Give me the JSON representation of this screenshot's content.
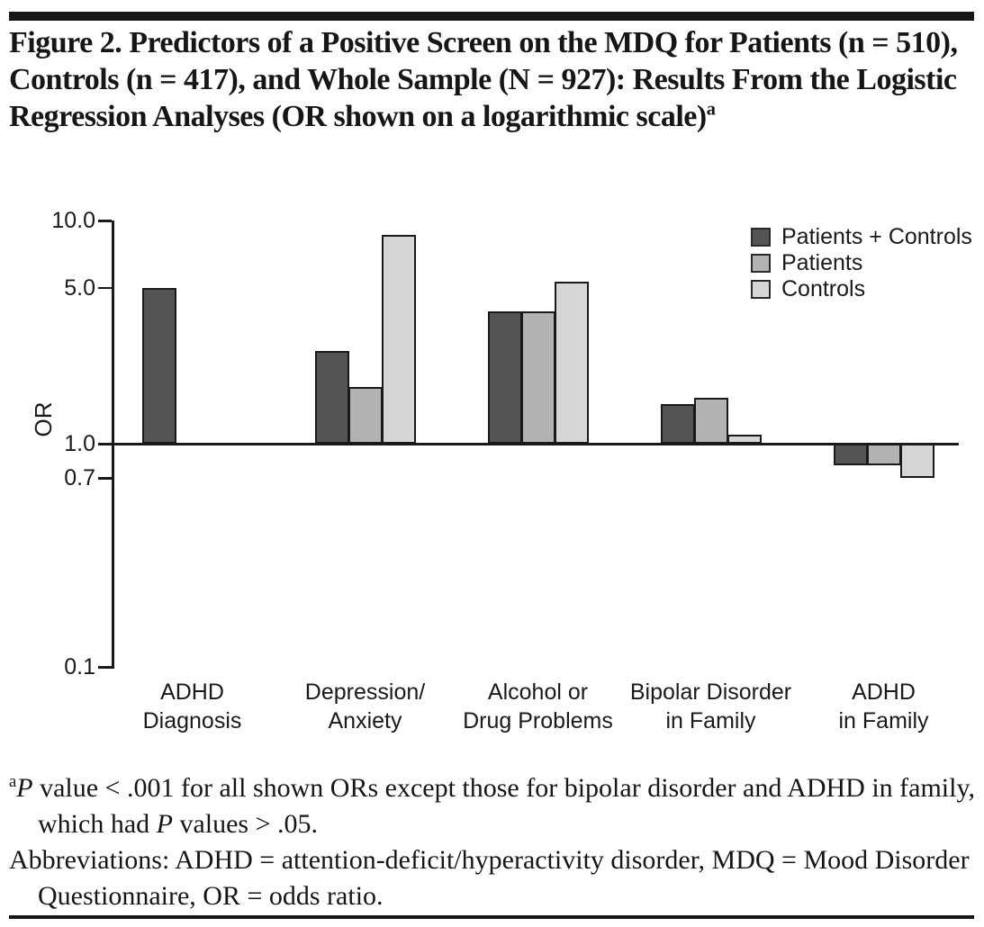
{
  "title": {
    "text": "Figure 2. Predictors of a Positive Screen on the MDQ for Patients (n = 510), Controls (n = 417), and Whole Sample (N = 927): Results From the Logistic Regression Analyses (OR shown on a logarithmic scale)",
    "footnote_marker": "a"
  },
  "chart_data": {
    "type": "bar",
    "scale": "log",
    "title": "",
    "xlabel": "",
    "ylabel": "OR",
    "ylim": [
      0.1,
      10.0
    ],
    "baseline": 1.0,
    "grid": false,
    "legend_position": "top-right",
    "yticks": [
      10.0,
      5.0,
      1.0,
      0.7,
      0.1
    ],
    "ytick_labels": [
      "10.0",
      "5.0",
      "1.0",
      "0.7",
      "0.1"
    ],
    "categories": [
      "ADHD Diagnosis",
      "Depression/Anxiety",
      "Alcohol or Drug Problems",
      "Bipolar Disorder in Family",
      "ADHD in Family"
    ],
    "category_label_lines": [
      [
        "ADHD",
        "Diagnosis"
      ],
      [
        "Depression/",
        "Anxiety"
      ],
      [
        "Alcohol or",
        "Drug Problems"
      ],
      [
        "Bipolar Disorder",
        "in Family"
      ],
      [
        "ADHD",
        "in Family"
      ]
    ],
    "series": [
      {
        "name": "Patients + Controls",
        "color": "#545454",
        "values": [
          5.0,
          2.6,
          3.9,
          1.5,
          0.8
        ]
      },
      {
        "name": "Patients",
        "color": "#b2b2b2",
        "values": [
          null,
          1.8,
          3.9,
          1.6,
          0.8
        ]
      },
      {
        "name": "Controls",
        "color": "#d6d6d6",
        "values": [
          null,
          8.6,
          5.3,
          1.1,
          0.7
        ]
      }
    ],
    "axis_color": "#1a1a1a"
  },
  "footnotes": [
    {
      "marker": "a",
      "segments": [
        {
          "text": "P",
          "italic": true
        },
        {
          "text": " value < .001 for all shown ORs except those for bipolar disorder and ADHD in family, which had ",
          "italic": false
        },
        {
          "text": "P",
          "italic": true
        },
        {
          "text": " values > .05.",
          "italic": false
        }
      ]
    },
    {
      "marker": "",
      "segments": [
        {
          "text": "Abbreviations: ADHD = attention-deficit/hyperactivity disorder, MDQ = Mood Disorder Questionnaire, OR = odds ratio.",
          "italic": false
        }
      ]
    }
  ]
}
